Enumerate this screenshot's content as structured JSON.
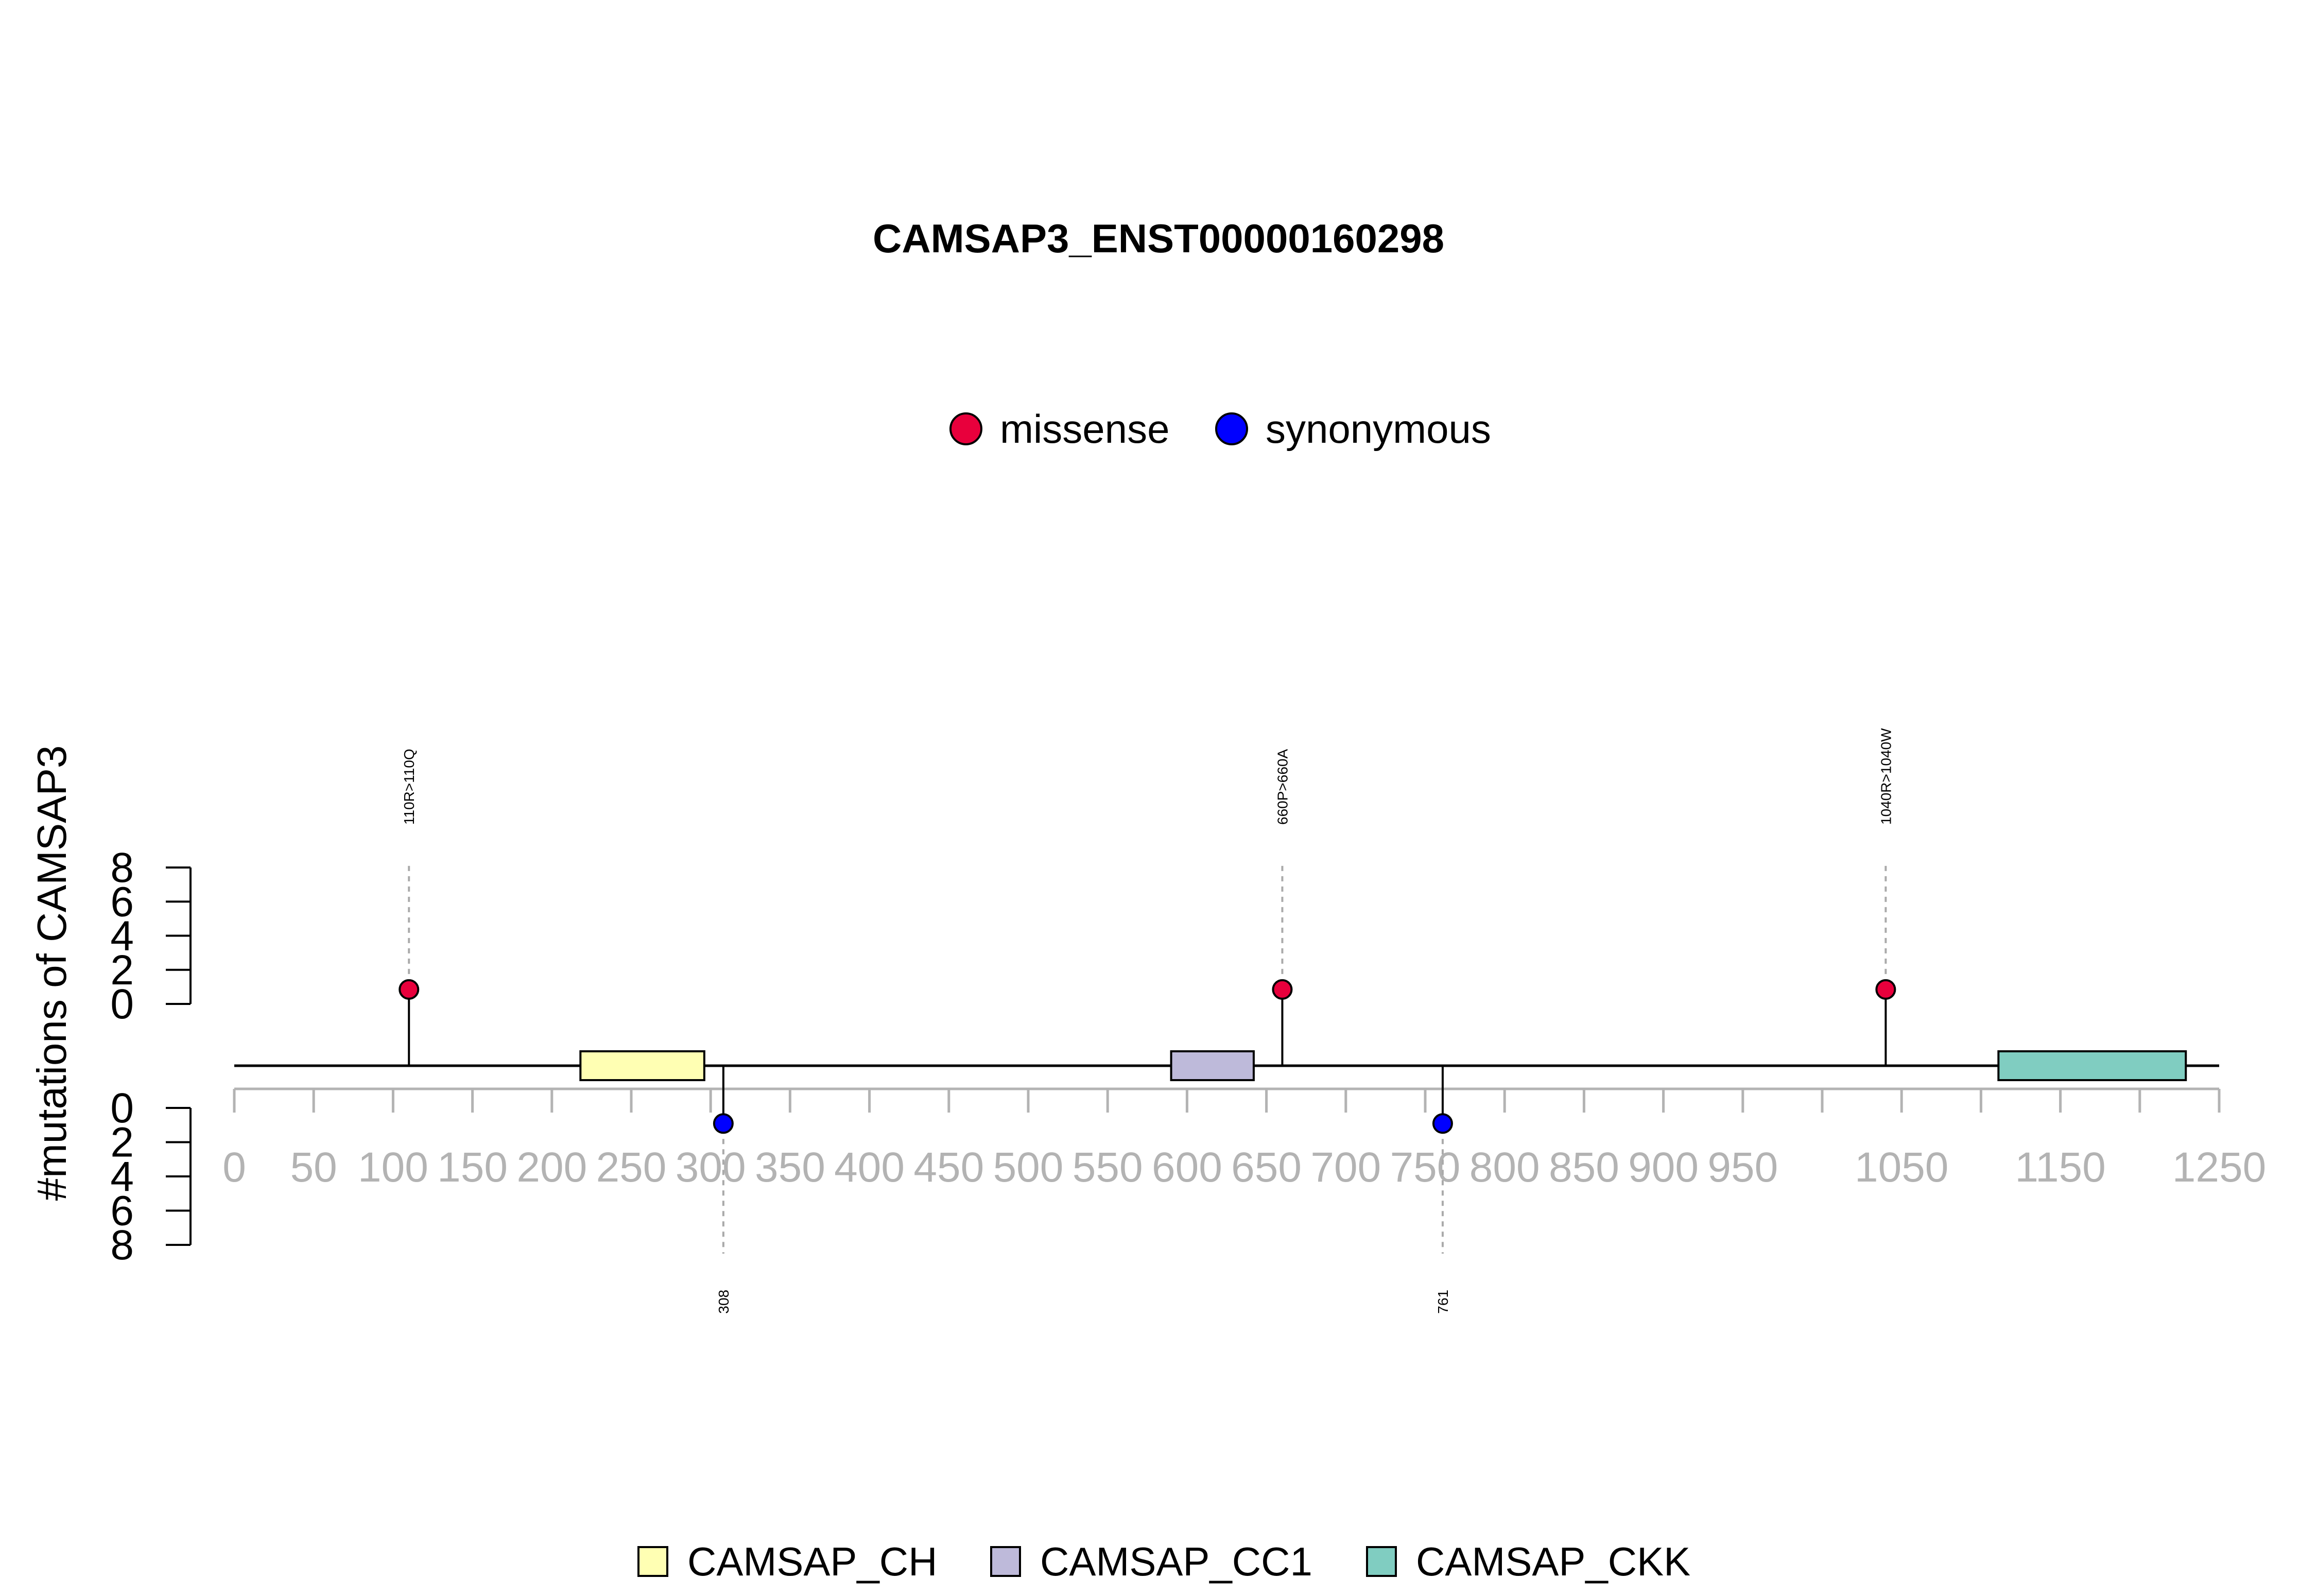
{
  "chart_data": {
    "type": "lollipop",
    "title": "CAMSAP3_ENST00000160298",
    "ylabel": "#mutations of CAMSAP3",
    "protein_length": 1250,
    "xlim": [
      0,
      1250
    ],
    "x_ticks": [
      0,
      50,
      100,
      150,
      200,
      250,
      300,
      350,
      400,
      450,
      500,
      550,
      600,
      650,
      700,
      750,
      800,
      850,
      900,
      950,
      1000,
      1050,
      1100,
      1150,
      1200,
      1250
    ],
    "x_tick_labels": [
      {
        "pos": 0,
        "label": "0"
      },
      {
        "pos": 50,
        "label": "50"
      },
      {
        "pos": 100,
        "label": "100"
      },
      {
        "pos": 150,
        "label": "150"
      },
      {
        "pos": 200,
        "label": "200"
      },
      {
        "pos": 250,
        "label": "250"
      },
      {
        "pos": 300,
        "label": "300"
      },
      {
        "pos": 350,
        "label": "350"
      },
      {
        "pos": 400,
        "label": "400"
      },
      {
        "pos": 450,
        "label": "450"
      },
      {
        "pos": 500,
        "label": "500"
      },
      {
        "pos": 550,
        "label": "550"
      },
      {
        "pos": 600,
        "label": "600"
      },
      {
        "pos": 650,
        "label": "650"
      },
      {
        "pos": 700,
        "label": "700"
      },
      {
        "pos": 750,
        "label": "750"
      },
      {
        "pos": 800,
        "label": "800"
      },
      {
        "pos": 850,
        "label": "850"
      },
      {
        "pos": 900,
        "label": "900"
      },
      {
        "pos": 950,
        "label": "950"
      },
      {
        "pos": 1050,
        "label": "1050"
      },
      {
        "pos": 1150,
        "label": "1150"
      },
      {
        "pos": 1250,
        "label": "1250"
      }
    ],
    "y_ticks": [
      0,
      2,
      4,
      6,
      8
    ],
    "ylim": [
      0,
      8
    ],
    "mutation_types": [
      {
        "name": "missense",
        "color": "#e8003c"
      },
      {
        "name": "synonymous",
        "color": "#0000ff"
      }
    ],
    "domains": [
      {
        "name": "CAMSAP_CH",
        "start": 218,
        "end": 296,
        "color": "#ffffb3"
      },
      {
        "name": "CAMSAP_CC1",
        "start": 590,
        "end": 642,
        "color": "#bebada"
      },
      {
        "name": "CAMSAP_CKK",
        "start": 1111,
        "end": 1229,
        "color": "#80cdc1"
      }
    ],
    "mutations": [
      {
        "position": 110,
        "label": "110R>110Q",
        "type": "missense",
        "count": 1,
        "side": "top"
      },
      {
        "position": 660,
        "label": "660P>660A",
        "type": "missense",
        "count": 1,
        "side": "top"
      },
      {
        "position": 1040,
        "label": "1040R>1040W",
        "type": "missense",
        "count": 1,
        "side": "top"
      },
      {
        "position": 308,
        "label": "308",
        "type": "synonymous",
        "count": 1,
        "side": "bottom"
      },
      {
        "position": 761,
        "label": "761",
        "type": "synonymous",
        "count": 1,
        "side": "bottom"
      }
    ]
  }
}
